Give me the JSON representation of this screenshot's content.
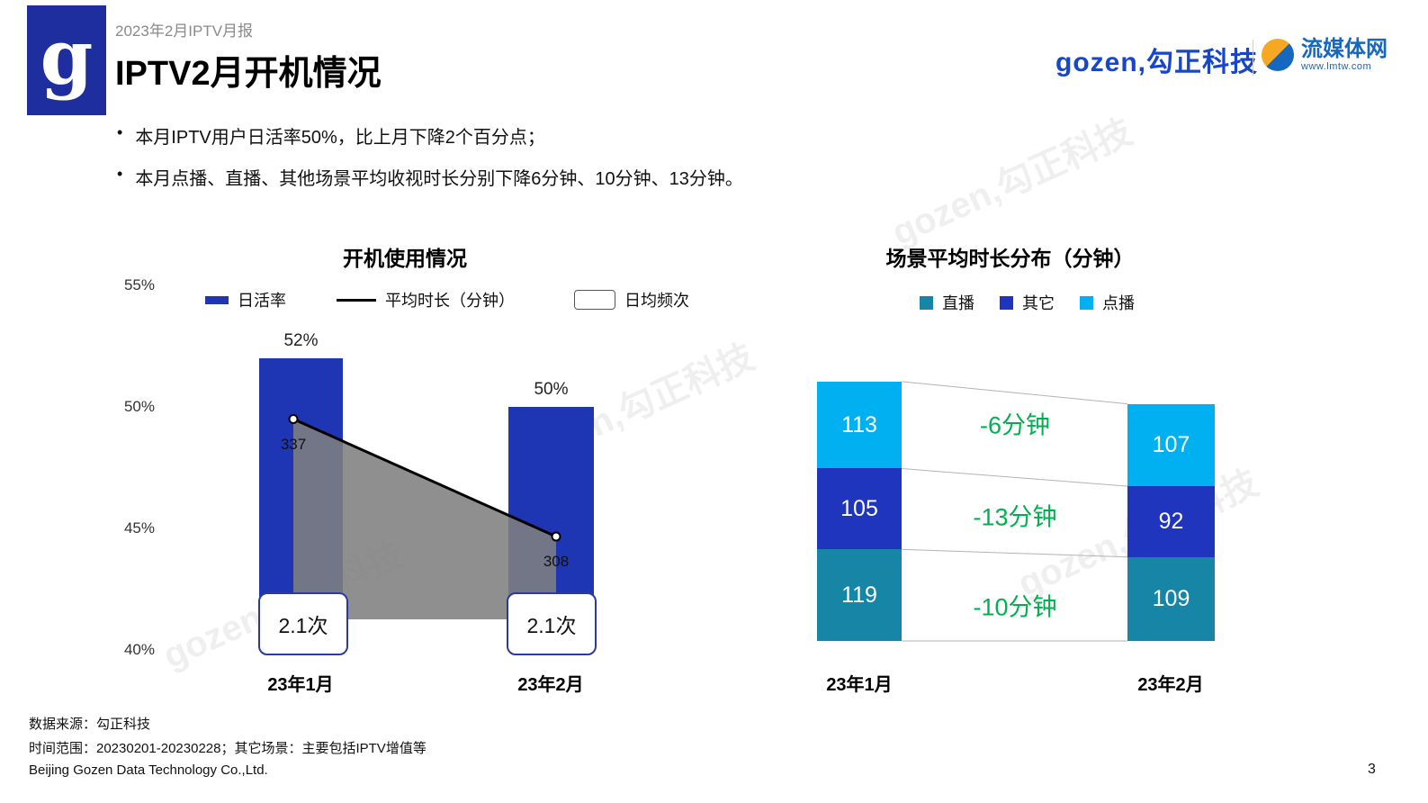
{
  "header": {
    "report_label": "2023年2月IPTV月报",
    "title": "IPTV2月开机情况",
    "logo_letter": "g",
    "gozen_logo_text": "gozen,勾正科技",
    "lmtw_name": "流媒体网",
    "lmtw_url": "www.lmtw.com"
  },
  "bullets": [
    "本月IPTV用户日活率50%，比上月下降2个百分点；",
    "本月点播、直播、其他场景平均收视时长分别下降6分钟、10分钟、13分钟。"
  ],
  "watermark": "gozen,勾正科技",
  "footer": {
    "source": "数据来源：勾正科技",
    "scope": "时间范围：20230201-20230228；其它场景：主要包括IPTV增值等",
    "company": "Beijing Gozen Data Technology Co.,Ltd.",
    "page_number": "3"
  },
  "chart_data": [
    {
      "type": "bar+line",
      "title": "开机使用情况",
      "categories": [
        "23年1月",
        "23年2月"
      ],
      "y_axis": {
        "min": 40,
        "max": 55,
        "ticks": [
          "55%",
          "50%",
          "45%",
          "40%"
        ]
      },
      "series": [
        {
          "name": "日活率",
          "chart": "bar",
          "unit": "%",
          "values": [
            52,
            50
          ],
          "labels": [
            "52%",
            "50%"
          ],
          "color": "#1F36B4"
        },
        {
          "name": "平均时长（分钟）",
          "chart": "line",
          "unit": "分钟",
          "values": [
            337,
            308
          ],
          "labels": [
            "337",
            "308"
          ],
          "color": "#000000",
          "area_color": "#7F7F7F"
        },
        {
          "name": "日均频次",
          "chart": "label",
          "unit": "次",
          "values": [
            2.1,
            2.1
          ],
          "labels": [
            "2.1次",
            "2.1次"
          ]
        }
      ]
    },
    {
      "type": "stacked-bar",
      "title": "场景平均时长分布（分钟）",
      "categories": [
        "23年1月",
        "23年2月"
      ],
      "legend": [
        {
          "label": "直播",
          "color": "#1786A6"
        },
        {
          "label": "其它",
          "color": "#1F35BE"
        },
        {
          "label": "点播",
          "color": "#00B0F0"
        }
      ],
      "series": [
        {
          "name": "点播",
          "color": "#00B0F0",
          "values": [
            113,
            107
          ]
        },
        {
          "name": "其它",
          "color": "#1F35BE",
          "values": [
            105,
            92
          ]
        },
        {
          "name": "直播",
          "color": "#1786A6",
          "values": [
            119,
            109
          ]
        }
      ],
      "deltas": {
        "labels": [
          "-6分钟",
          "-13分钟",
          "-10分钟"
        ],
        "color": "#00B050"
      }
    }
  ]
}
